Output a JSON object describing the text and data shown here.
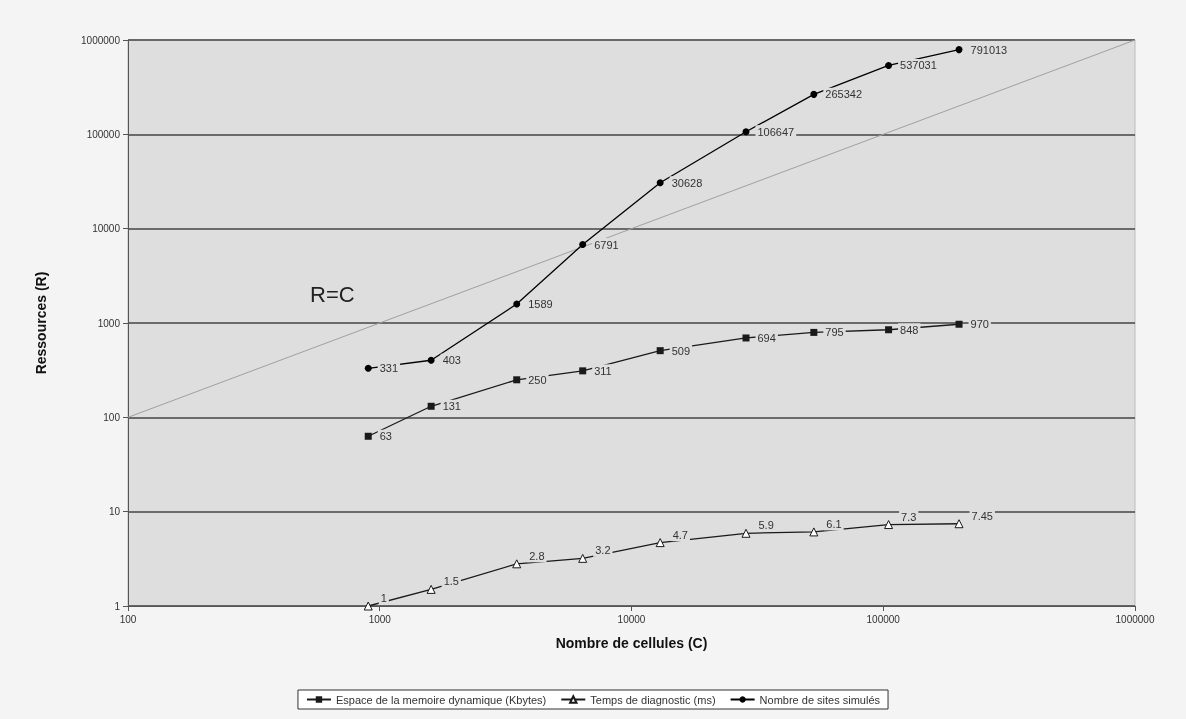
{
  "chart_data": {
    "type": "line",
    "xlabel": "Nombre de cellules (C)",
    "ylabel": "Ressources (R)",
    "log": "xy",
    "xlim": [
      100,
      1000000
    ],
    "xticks": [
      100,
      1000,
      10000,
      100000,
      1000000
    ],
    "ylim": [
      1,
      1000000
    ],
    "yticks": [
      1,
      10,
      100,
      1000,
      10000,
      100000,
      1000000
    ],
    "grid": "y",
    "legend": "bottom",
    "line_style": "solid",
    "annotations": [
      "R=C"
    ],
    "series": [
      {
        "name": "Espace de la memoire dynamique (Kbytes)",
        "color": "#1a1a1a",
        "marker": "square",
        "x": [
          900,
          1600,
          3500,
          6400,
          13000,
          28500,
          53000,
          105000,
          200000
        ],
        "values": [
          63,
          131,
          250,
          311,
          509,
          694,
          795,
          848,
          970
        ],
        "value_labels": [
          "63",
          "131",
          "250",
          "311",
          "509",
          "694",
          "795",
          "848",
          "970"
        ]
      },
      {
        "name": "Temps de diagnostic (ms)",
        "color": "#1a1a1a",
        "marker": "triangle",
        "x": [
          900,
          1600,
          3500,
          6400,
          13000,
          28500,
          53000,
          105000,
          200000
        ],
        "values": [
          1,
          1.5,
          2.8,
          3.2,
          4.7,
          5.9,
          6.1,
          7.3,
          7.45
        ],
        "value_labels": [
          "1",
          "1.5",
          "2.8",
          "3.2",
          "4.7",
          "5.9",
          "6.1",
          "7.3",
          "7.45"
        ]
      },
      {
        "name": "Nombre de sites simulés",
        "color": "#000000",
        "marker": "circle",
        "x": [
          900,
          1600,
          3500,
          6400,
          13000,
          28500,
          53000,
          105000,
          200000
        ],
        "values": [
          331,
          403,
          1589,
          6791,
          30628,
          106647,
          265342,
          537031,
          791013
        ],
        "value_labels": [
          "331",
          "403",
          "1589",
          "6791",
          "30628",
          "106647",
          "265342",
          "537031",
          "791013"
        ]
      },
      {
        "type": "line",
        "color": "#a0a0a0",
        "marker": "none",
        "x": [
          100,
          1000000
        ],
        "values": [
          100,
          1000000
        ]
      }
    ]
  }
}
